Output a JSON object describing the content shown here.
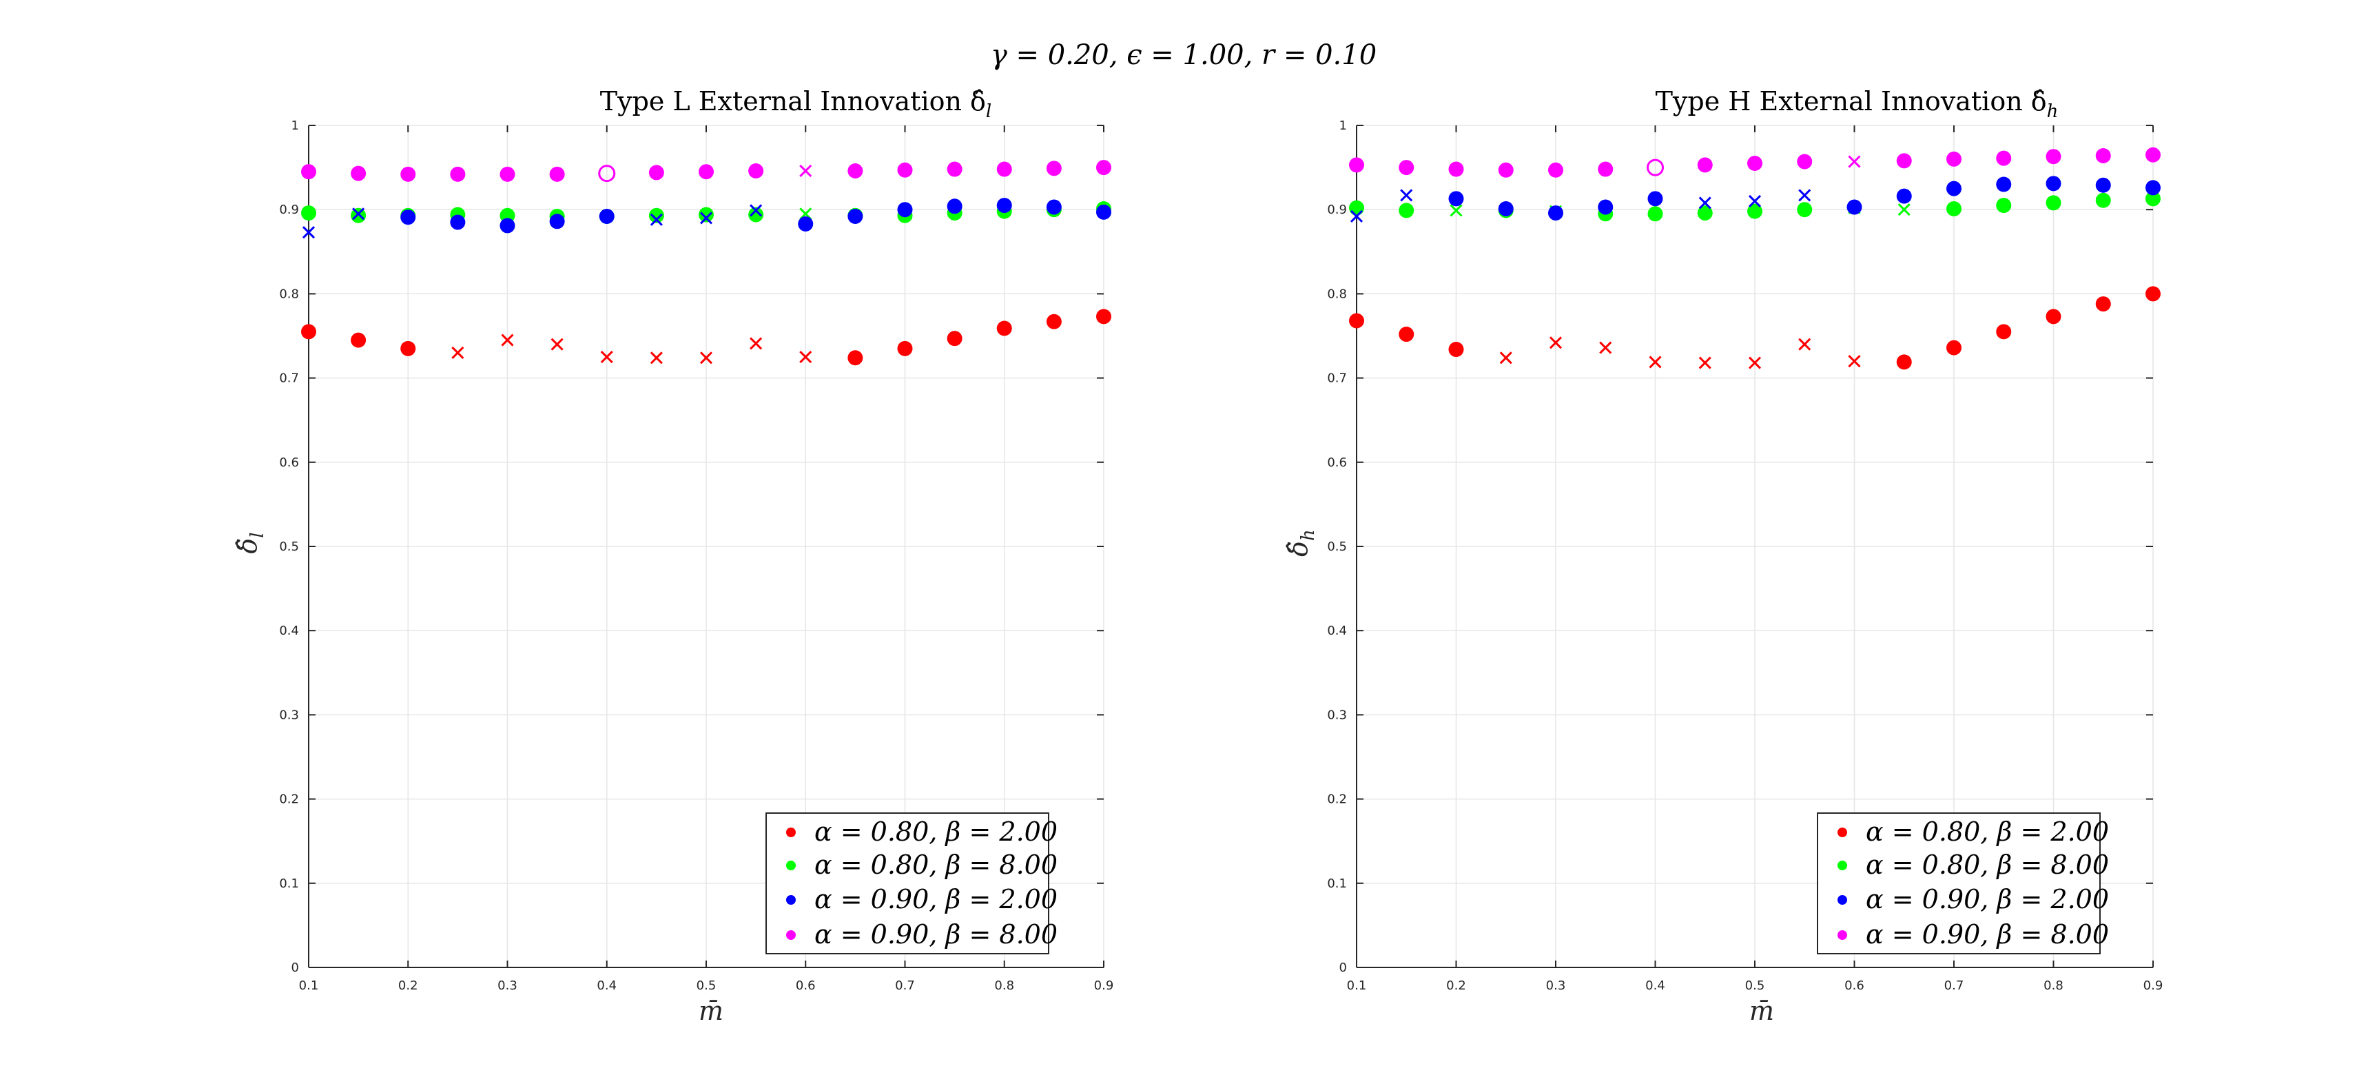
{
  "suptitle": "γ = 0.20, ϵ = 1.00, r = 0.10",
  "colors": {
    "red": "#ff0000",
    "green": "#00ff00",
    "blue": "#0000ff",
    "magenta": "#ff00ff"
  },
  "chart_data": [
    {
      "type": "scatter",
      "title": "Type L External Innovation δ̂",
      "title_sub": "l",
      "xlabel": "m̄",
      "ylabel": "δ̂",
      "ylabel_sub": "l",
      "xlim": [
        0.1,
        0.9
      ],
      "ylim": [
        0,
        1
      ],
      "xticks": [
        "0.1",
        "0.2",
        "0.3",
        "0.4",
        "0.5",
        "0.6",
        "0.7",
        "0.8",
        "0.9"
      ],
      "yticks": [
        "0",
        "0.1",
        "0.2",
        "0.3",
        "0.4",
        "0.5",
        "0.6",
        "0.7",
        "0.8",
        "0.9",
        "1"
      ],
      "grid": true,
      "legend_position": "bottom-right",
      "legend": [
        "α = 0.80, β = 2.00",
        "α = 0.80, β = 8.00",
        "α = 0.90, β = 2.00",
        "α = 0.90, β = 8.00"
      ],
      "series": [
        {
          "color": "#ff0000",
          "points": [
            {
              "x": 0.1,
              "y": 0.755,
              "m": "dot"
            },
            {
              "x": 0.15,
              "y": 0.745,
              "m": "dot"
            },
            {
              "x": 0.2,
              "y": 0.735,
              "m": "dot"
            },
            {
              "x": 0.25,
              "y": 0.73,
              "m": "x"
            },
            {
              "x": 0.3,
              "y": 0.745,
              "m": "x"
            },
            {
              "x": 0.35,
              "y": 0.74,
              "m": "x"
            },
            {
              "x": 0.4,
              "y": 0.725,
              "m": "x"
            },
            {
              "x": 0.45,
              "y": 0.724,
              "m": "x"
            },
            {
              "x": 0.5,
              "y": 0.724,
              "m": "x"
            },
            {
              "x": 0.55,
              "y": 0.741,
              "m": "x"
            },
            {
              "x": 0.6,
              "y": 0.725,
              "m": "x"
            },
            {
              "x": 0.65,
              "y": 0.724,
              "m": "dot"
            },
            {
              "x": 0.7,
              "y": 0.735,
              "m": "dot"
            },
            {
              "x": 0.75,
              "y": 0.747,
              "m": "dot"
            },
            {
              "x": 0.8,
              "y": 0.759,
              "m": "dot"
            },
            {
              "x": 0.85,
              "y": 0.767,
              "m": "dot"
            },
            {
              "x": 0.9,
              "y": 0.773,
              "m": "dot"
            }
          ]
        },
        {
          "color": "#00ff00",
          "points": [
            {
              "x": 0.1,
              "y": 0.896,
              "m": "dot"
            },
            {
              "x": 0.15,
              "y": 0.893,
              "m": "dot"
            },
            {
              "x": 0.2,
              "y": 0.893,
              "m": "dot"
            },
            {
              "x": 0.25,
              "y": 0.894,
              "m": "dot"
            },
            {
              "x": 0.3,
              "y": 0.893,
              "m": "dot"
            },
            {
              "x": 0.35,
              "y": 0.892,
              "m": "dot"
            },
            {
              "x": 0.4,
              "y": 0.892,
              "m": "dot"
            },
            {
              "x": 0.45,
              "y": 0.893,
              "m": "dot"
            },
            {
              "x": 0.5,
              "y": 0.894,
              "m": "dot"
            },
            {
              "x": 0.55,
              "y": 0.894,
              "m": "dot"
            },
            {
              "x": 0.6,
              "y": 0.895,
              "m": "x"
            },
            {
              "x": 0.65,
              "y": 0.893,
              "m": "dot"
            },
            {
              "x": 0.7,
              "y": 0.893,
              "m": "dot"
            },
            {
              "x": 0.75,
              "y": 0.896,
              "m": "dot"
            },
            {
              "x": 0.8,
              "y": 0.898,
              "m": "dot"
            },
            {
              "x": 0.85,
              "y": 0.9,
              "m": "dot"
            },
            {
              "x": 0.9,
              "y": 0.901,
              "m": "dot"
            }
          ]
        },
        {
          "color": "#0000ff",
          "points": [
            {
              "x": 0.1,
              "y": 0.873,
              "m": "x"
            },
            {
              "x": 0.15,
              "y": 0.895,
              "m": "x"
            },
            {
              "x": 0.2,
              "y": 0.891,
              "m": "dot"
            },
            {
              "x": 0.25,
              "y": 0.885,
              "m": "dot"
            },
            {
              "x": 0.3,
              "y": 0.881,
              "m": "dot"
            },
            {
              "x": 0.35,
              "y": 0.886,
              "m": "dot"
            },
            {
              "x": 0.4,
              "y": 0.892,
              "m": "dot"
            },
            {
              "x": 0.45,
              "y": 0.888,
              "m": "x"
            },
            {
              "x": 0.5,
              "y": 0.89,
              "m": "x"
            },
            {
              "x": 0.55,
              "y": 0.899,
              "m": "x"
            },
            {
              "x": 0.6,
              "y": 0.883,
              "m": "dot"
            },
            {
              "x": 0.65,
              "y": 0.892,
              "m": "dot"
            },
            {
              "x": 0.7,
              "y": 0.9,
              "m": "dot"
            },
            {
              "x": 0.75,
              "y": 0.904,
              "m": "dot"
            },
            {
              "x": 0.8,
              "y": 0.905,
              "m": "dot"
            },
            {
              "x": 0.85,
              "y": 0.903,
              "m": "dot"
            },
            {
              "x": 0.9,
              "y": 0.897,
              "m": "dot"
            }
          ]
        },
        {
          "color": "#ff00ff",
          "points": [
            {
              "x": 0.1,
              "y": 0.945,
              "m": "dot"
            },
            {
              "x": 0.15,
              "y": 0.943,
              "m": "dot"
            },
            {
              "x": 0.2,
              "y": 0.942,
              "m": "dot"
            },
            {
              "x": 0.25,
              "y": 0.942,
              "m": "dot"
            },
            {
              "x": 0.3,
              "y": 0.942,
              "m": "dot"
            },
            {
              "x": 0.35,
              "y": 0.942,
              "m": "dot"
            },
            {
              "x": 0.4,
              "y": 0.943,
              "m": "o"
            },
            {
              "x": 0.45,
              "y": 0.944,
              "m": "dot"
            },
            {
              "x": 0.5,
              "y": 0.945,
              "m": "dot"
            },
            {
              "x": 0.55,
              "y": 0.946,
              "m": "dot"
            },
            {
              "x": 0.6,
              "y": 0.946,
              "m": "x"
            },
            {
              "x": 0.65,
              "y": 0.946,
              "m": "dot"
            },
            {
              "x": 0.7,
              "y": 0.947,
              "m": "dot"
            },
            {
              "x": 0.75,
              "y": 0.948,
              "m": "dot"
            },
            {
              "x": 0.8,
              "y": 0.948,
              "m": "dot"
            },
            {
              "x": 0.85,
              "y": 0.949,
              "m": "dot"
            },
            {
              "x": 0.9,
              "y": 0.95,
              "m": "dot"
            }
          ]
        }
      ]
    },
    {
      "type": "scatter",
      "title": "Type H External Innovation δ̂",
      "title_sub": "h",
      "xlabel": "m̄",
      "ylabel": "δ̂",
      "ylabel_sub": "h",
      "xlim": [
        0.1,
        0.9
      ],
      "ylim": [
        0,
        1
      ],
      "xticks": [
        "0.1",
        "0.2",
        "0.3",
        "0.4",
        "0.5",
        "0.6",
        "0.7",
        "0.8",
        "0.9"
      ],
      "yticks": [
        "0",
        "0.1",
        "0.2",
        "0.3",
        "0.4",
        "0.5",
        "0.6",
        "0.7",
        "0.8",
        "0.9",
        "1"
      ],
      "grid": true,
      "legend_position": "bottom-right",
      "legend": [
        "α = 0.80, β = 2.00",
        "α = 0.80, β = 8.00",
        "α = 0.90, β = 2.00",
        "α = 0.90, β = 8.00"
      ],
      "series": [
        {
          "color": "#ff0000",
          "points": [
            {
              "x": 0.1,
              "y": 0.768,
              "m": "dot"
            },
            {
              "x": 0.15,
              "y": 0.752,
              "m": "dot"
            },
            {
              "x": 0.2,
              "y": 0.734,
              "m": "dot"
            },
            {
              "x": 0.25,
              "y": 0.724,
              "m": "x"
            },
            {
              "x": 0.3,
              "y": 0.742,
              "m": "x"
            },
            {
              "x": 0.35,
              "y": 0.736,
              "m": "x"
            },
            {
              "x": 0.4,
              "y": 0.719,
              "m": "x"
            },
            {
              "x": 0.45,
              "y": 0.718,
              "m": "x"
            },
            {
              "x": 0.5,
              "y": 0.718,
              "m": "x"
            },
            {
              "x": 0.55,
              "y": 0.74,
              "m": "x"
            },
            {
              "x": 0.6,
              "y": 0.72,
              "m": "x"
            },
            {
              "x": 0.65,
              "y": 0.719,
              "m": "dot"
            },
            {
              "x": 0.7,
              "y": 0.736,
              "m": "dot"
            },
            {
              "x": 0.75,
              "y": 0.755,
              "m": "dot"
            },
            {
              "x": 0.8,
              "y": 0.773,
              "m": "dot"
            },
            {
              "x": 0.85,
              "y": 0.788,
              "m": "dot"
            },
            {
              "x": 0.9,
              "y": 0.8,
              "m": "dot"
            }
          ]
        },
        {
          "color": "#00ff00",
          "points": [
            {
              "x": 0.1,
              "y": 0.902,
              "m": "dot"
            },
            {
              "x": 0.15,
              "y": 0.899,
              "m": "dot"
            },
            {
              "x": 0.2,
              "y": 0.899,
              "m": "x"
            },
            {
              "x": 0.25,
              "y": 0.899,
              "m": "dot"
            },
            {
              "x": 0.3,
              "y": 0.898,
              "m": "x"
            },
            {
              "x": 0.35,
              "y": 0.895,
              "m": "dot"
            },
            {
              "x": 0.4,
              "y": 0.895,
              "m": "dot"
            },
            {
              "x": 0.45,
              "y": 0.896,
              "m": "dot"
            },
            {
              "x": 0.5,
              "y": 0.898,
              "m": "dot"
            },
            {
              "x": 0.55,
              "y": 0.9,
              "m": "dot"
            },
            {
              "x": 0.6,
              "y": 0.902,
              "m": "x"
            },
            {
              "x": 0.65,
              "y": 0.9,
              "m": "x"
            },
            {
              "x": 0.7,
              "y": 0.901,
              "m": "dot"
            },
            {
              "x": 0.75,
              "y": 0.905,
              "m": "dot"
            },
            {
              "x": 0.8,
              "y": 0.908,
              "m": "dot"
            },
            {
              "x": 0.85,
              "y": 0.911,
              "m": "dot"
            },
            {
              "x": 0.9,
              "y": 0.913,
              "m": "dot"
            }
          ]
        },
        {
          "color": "#0000ff",
          "points": [
            {
              "x": 0.1,
              "y": 0.892,
              "m": "x"
            },
            {
              "x": 0.15,
              "y": 0.917,
              "m": "x"
            },
            {
              "x": 0.2,
              "y": 0.913,
              "m": "dot"
            },
            {
              "x": 0.25,
              "y": 0.901,
              "m": "dot"
            },
            {
              "x": 0.3,
              "y": 0.896,
              "m": "dot"
            },
            {
              "x": 0.35,
              "y": 0.903,
              "m": "dot"
            },
            {
              "x": 0.4,
              "y": 0.913,
              "m": "dot"
            },
            {
              "x": 0.45,
              "y": 0.908,
              "m": "x"
            },
            {
              "x": 0.5,
              "y": 0.91,
              "m": "x"
            },
            {
              "x": 0.55,
              "y": 0.917,
              "m": "x"
            },
            {
              "x": 0.6,
              "y": 0.903,
              "m": "dot"
            },
            {
              "x": 0.65,
              "y": 0.916,
              "m": "dot"
            },
            {
              "x": 0.7,
              "y": 0.925,
              "m": "dot"
            },
            {
              "x": 0.75,
              "y": 0.93,
              "m": "dot"
            },
            {
              "x": 0.8,
              "y": 0.931,
              "m": "dot"
            },
            {
              "x": 0.85,
              "y": 0.929,
              "m": "dot"
            },
            {
              "x": 0.9,
              "y": 0.926,
              "m": "dot"
            }
          ]
        },
        {
          "color": "#ff00ff",
          "points": [
            {
              "x": 0.1,
              "y": 0.953,
              "m": "dot"
            },
            {
              "x": 0.15,
              "y": 0.95,
              "m": "dot"
            },
            {
              "x": 0.2,
              "y": 0.948,
              "m": "dot"
            },
            {
              "x": 0.25,
              "y": 0.947,
              "m": "dot"
            },
            {
              "x": 0.3,
              "y": 0.947,
              "m": "dot"
            },
            {
              "x": 0.35,
              "y": 0.948,
              "m": "dot"
            },
            {
              "x": 0.4,
              "y": 0.95,
              "m": "o"
            },
            {
              "x": 0.45,
              "y": 0.953,
              "m": "dot"
            },
            {
              "x": 0.5,
              "y": 0.955,
              "m": "dot"
            },
            {
              "x": 0.55,
              "y": 0.957,
              "m": "dot"
            },
            {
              "x": 0.6,
              "y": 0.957,
              "m": "x"
            },
            {
              "x": 0.65,
              "y": 0.958,
              "m": "dot"
            },
            {
              "x": 0.7,
              "y": 0.96,
              "m": "dot"
            },
            {
              "x": 0.75,
              "y": 0.961,
              "m": "dot"
            },
            {
              "x": 0.8,
              "y": 0.963,
              "m": "dot"
            },
            {
              "x": 0.85,
              "y": 0.964,
              "m": "dot"
            },
            {
              "x": 0.9,
              "y": 0.965,
              "m": "dot"
            }
          ]
        }
      ]
    }
  ]
}
